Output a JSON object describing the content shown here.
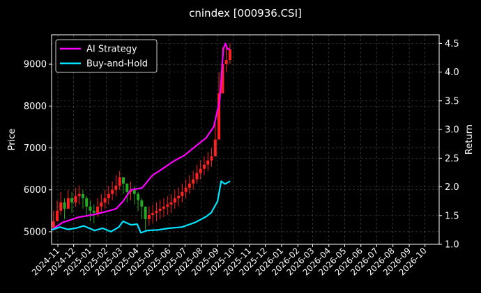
{
  "chart_data": {
    "type": "line",
    "title": "cnindex [000936.CSI]",
    "xlabel": "",
    "ylabel": "Price",
    "y2label": "Return",
    "ylim": [
      4700,
      9700
    ],
    "y2lim": [
      1.0,
      4.65
    ],
    "yticks": [
      5000,
      6000,
      7000,
      8000,
      9000
    ],
    "y2ticks": [
      1.0,
      1.5,
      2.0,
      2.5,
      3.0,
      3.5,
      4.0,
      4.5
    ],
    "y2tick_labels": [
      "1.0",
      "1.5",
      "2.0",
      "2.5",
      "3.0",
      "3.5",
      "4.0",
      "4.5"
    ],
    "xlim": [
      "2024-10-20",
      "2026-10-28"
    ],
    "xticks": [
      "2024-11",
      "2024-12",
      "2025-01",
      "2025-02",
      "2025-03",
      "2025-04",
      "2025-05",
      "2025-06",
      "2025-07",
      "2025-08",
      "2025-09",
      "2025-10",
      "2025-11",
      "2025-12",
      "2026-01",
      "2026-02",
      "2026-03",
      "2026-04",
      "2026-05",
      "2026-06",
      "2026-07",
      "2026-08",
      "2026-09",
      "2026-10"
    ],
    "grid": true,
    "legend_position": "top-left",
    "price_series": {
      "kind": "candlestick",
      "up_color": "#ff2020",
      "down_color": "#22aa22",
      "dates": [
        "2024-10-21",
        "2024-10-28",
        "2024-11-04",
        "2024-11-11",
        "2024-11-18",
        "2024-11-25",
        "2024-12-02",
        "2024-12-09",
        "2024-12-16",
        "2024-12-23",
        "2024-12-30",
        "2025-01-06",
        "2025-01-13",
        "2025-01-20",
        "2025-01-27",
        "2025-02-03",
        "2025-02-10",
        "2025-02-17",
        "2025-02-24",
        "2025-03-03",
        "2025-03-10",
        "2025-03-17",
        "2025-03-24",
        "2025-03-31",
        "2025-04-07",
        "2025-04-14",
        "2025-04-21",
        "2025-04-28",
        "2025-05-05",
        "2025-05-12",
        "2025-05-19",
        "2025-05-26",
        "2025-06-02",
        "2025-06-09",
        "2025-06-16",
        "2025-06-23",
        "2025-06-30",
        "2025-07-07",
        "2025-07-14",
        "2025-07-21",
        "2025-07-28",
        "2025-08-04",
        "2025-08-11",
        "2025-08-18",
        "2025-08-25",
        "2025-09-01",
        "2025-09-08",
        "2025-09-15",
        "2025-09-22"
      ],
      "close": [
        5250,
        5500,
        5700,
        5550,
        5800,
        5700,
        5850,
        5900,
        5800,
        5600,
        5500,
        5450,
        5600,
        5700,
        5800,
        5900,
        6000,
        6100,
        6300,
        6150,
        5950,
        6000,
        5900,
        5750,
        5600,
        5300,
        5400,
        5450,
        5500,
        5550,
        5600,
        5650,
        5700,
        5800,
        5850,
        5950,
        6050,
        6150,
        6250,
        6400,
        6500,
        6600,
        6700,
        6800,
        7200,
        8300,
        9000,
        9100,
        9350
      ],
      "high": [
        5500,
        5750,
        5950,
        5800,
        6000,
        5950,
        6050,
        6100,
        6000,
        5850,
        5750,
        5650,
        5800,
        5900,
        6000,
        6100,
        6200,
        6350,
        6450,
        6300,
        6150,
        6200,
        6100,
        5950,
        5800,
        5500,
        5600,
        5650,
        5700,
        5750,
        5800,
        5850,
        5900,
        6000,
        6050,
        6150,
        6250,
        6350,
        6450,
        6600,
        6700,
        6800,
        6900,
        7000,
        7600,
        8800,
        9400,
        9450,
        9500
      ],
      "low": [
        5050,
        5250,
        5400,
        5300,
        5550,
        5450,
        5600,
        5650,
        5550,
        5350,
        5250,
        5200,
        5350,
        5450,
        5550,
        5650,
        5750,
        5850,
        6000,
        5900,
        5700,
        5750,
        5650,
        5500,
        5300,
        5050,
        5150,
        5200,
        5250,
        5300,
        5350,
        5400,
        5450,
        5550,
        5600,
        5700,
        5800,
        5900,
        6000,
        6150,
        6250,
        6350,
        6450,
        6550,
        6850,
        7600,
        8500,
        8800,
        9000
      ]
    },
    "series": [
      {
        "name": "AI Strategy",
        "color": "#ff00ff",
        "axis": "right",
        "x": [
          "2024-10-20",
          "2024-11-10",
          "2024-12-10",
          "2025-01-10",
          "2025-02-01",
          "2025-02-20",
          "2025-03-05",
          "2025-03-20",
          "2025-04-10",
          "2025-04-30",
          "2025-05-20",
          "2025-06-10",
          "2025-06-30",
          "2025-07-20",
          "2025-08-10",
          "2025-08-25",
          "2025-09-05",
          "2025-09-12",
          "2025-09-16",
          "2025-09-20",
          "2025-09-25"
        ],
        "y": [
          1.25,
          1.38,
          1.47,
          1.52,
          1.57,
          1.62,
          1.75,
          1.95,
          1.98,
          2.2,
          2.32,
          2.45,
          2.55,
          2.7,
          2.85,
          3.05,
          3.5,
          4.4,
          4.5,
          4.4,
          4.4
        ]
      },
      {
        "name": "Buy-and-Hold",
        "color": "#00e5ff",
        "axis": "right",
        "x": [
          "2024-10-20",
          "2024-11-05",
          "2024-11-20",
          "2024-12-05",
          "2024-12-20",
          "2025-01-10",
          "2025-01-25",
          "2025-02-10",
          "2025-02-25",
          "2025-03-05",
          "2025-03-20",
          "2025-04-01",
          "2025-04-08",
          "2025-04-20",
          "2025-05-10",
          "2025-06-01",
          "2025-06-25",
          "2025-07-20",
          "2025-08-10",
          "2025-08-20",
          "2025-09-01",
          "2025-09-08",
          "2025-09-15",
          "2025-09-25"
        ],
        "y": [
          1.25,
          1.3,
          1.26,
          1.28,
          1.32,
          1.24,
          1.28,
          1.22,
          1.3,
          1.4,
          1.34,
          1.35,
          1.2,
          1.24,
          1.25,
          1.28,
          1.3,
          1.38,
          1.48,
          1.55,
          1.75,
          2.1,
          2.05,
          2.1
        ]
      }
    ]
  }
}
